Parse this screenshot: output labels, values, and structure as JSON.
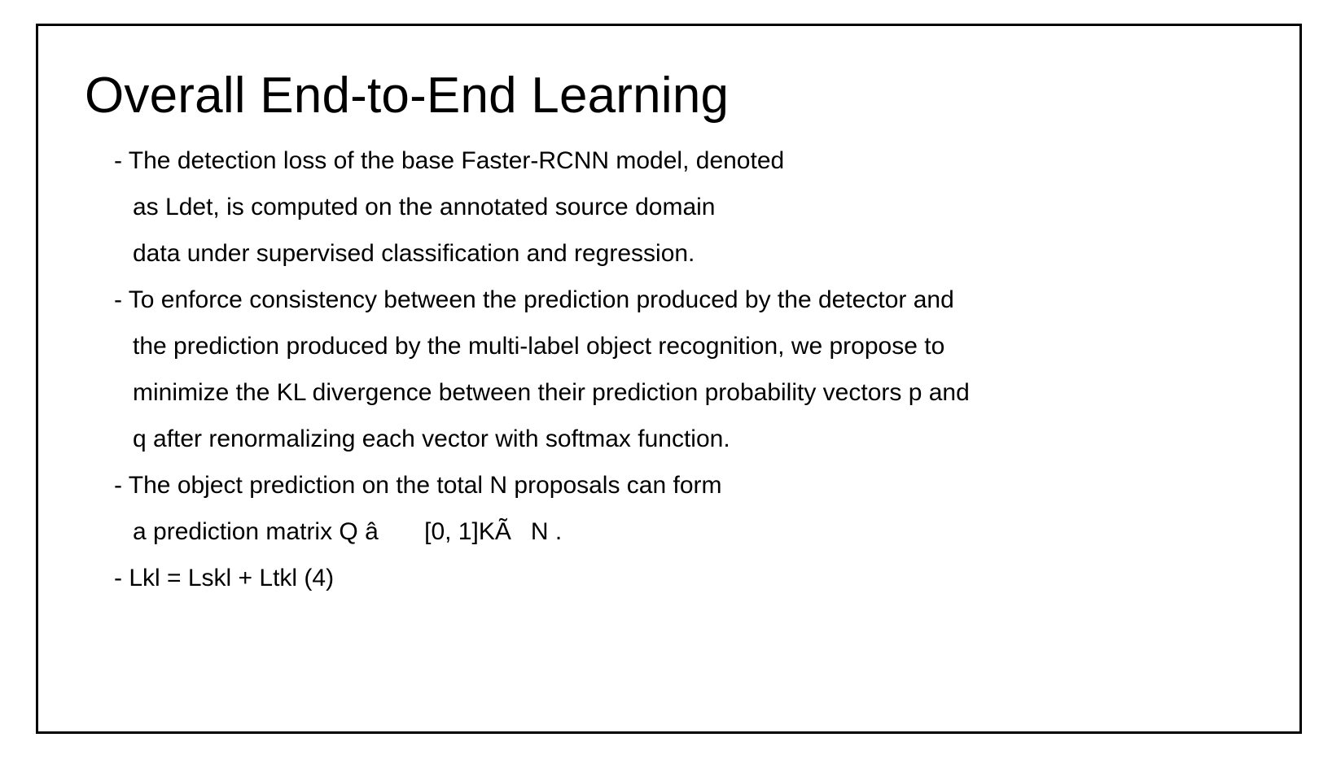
{
  "slide": {
    "title": "Overall End-to-End Learning",
    "lines": [
      {
        "text": "- The detection loss of the base Faster-RCNN model, denoted",
        "continuation": false
      },
      {
        "text": "as Ldet, is computed on the annotated source domain",
        "continuation": true
      },
      {
        "text": "data under supervised classification and regression.",
        "continuation": true
      },
      {
        "text": "- To enforce consistency between the prediction produced by the detector and",
        "continuation": false
      },
      {
        "text": "the prediction produced by the multi-label object recognition, we propose to",
        "continuation": true
      },
      {
        "text": "minimize the KL divergence between their prediction probability vectors p and",
        "continuation": true
      },
      {
        "text": "q after renormalizing each vector with softmax function.",
        "continuation": true
      },
      {
        "text": "- The object prediction on the total N proposals can form",
        "continuation": false
      },
      {
        "text": "a prediction matrix Q â [0, 1]KÃN .",
        "continuation": true
      },
      {
        "text": "- Lkl = Lskl + Ltkl (4)",
        "continuation": false
      }
    ]
  }
}
